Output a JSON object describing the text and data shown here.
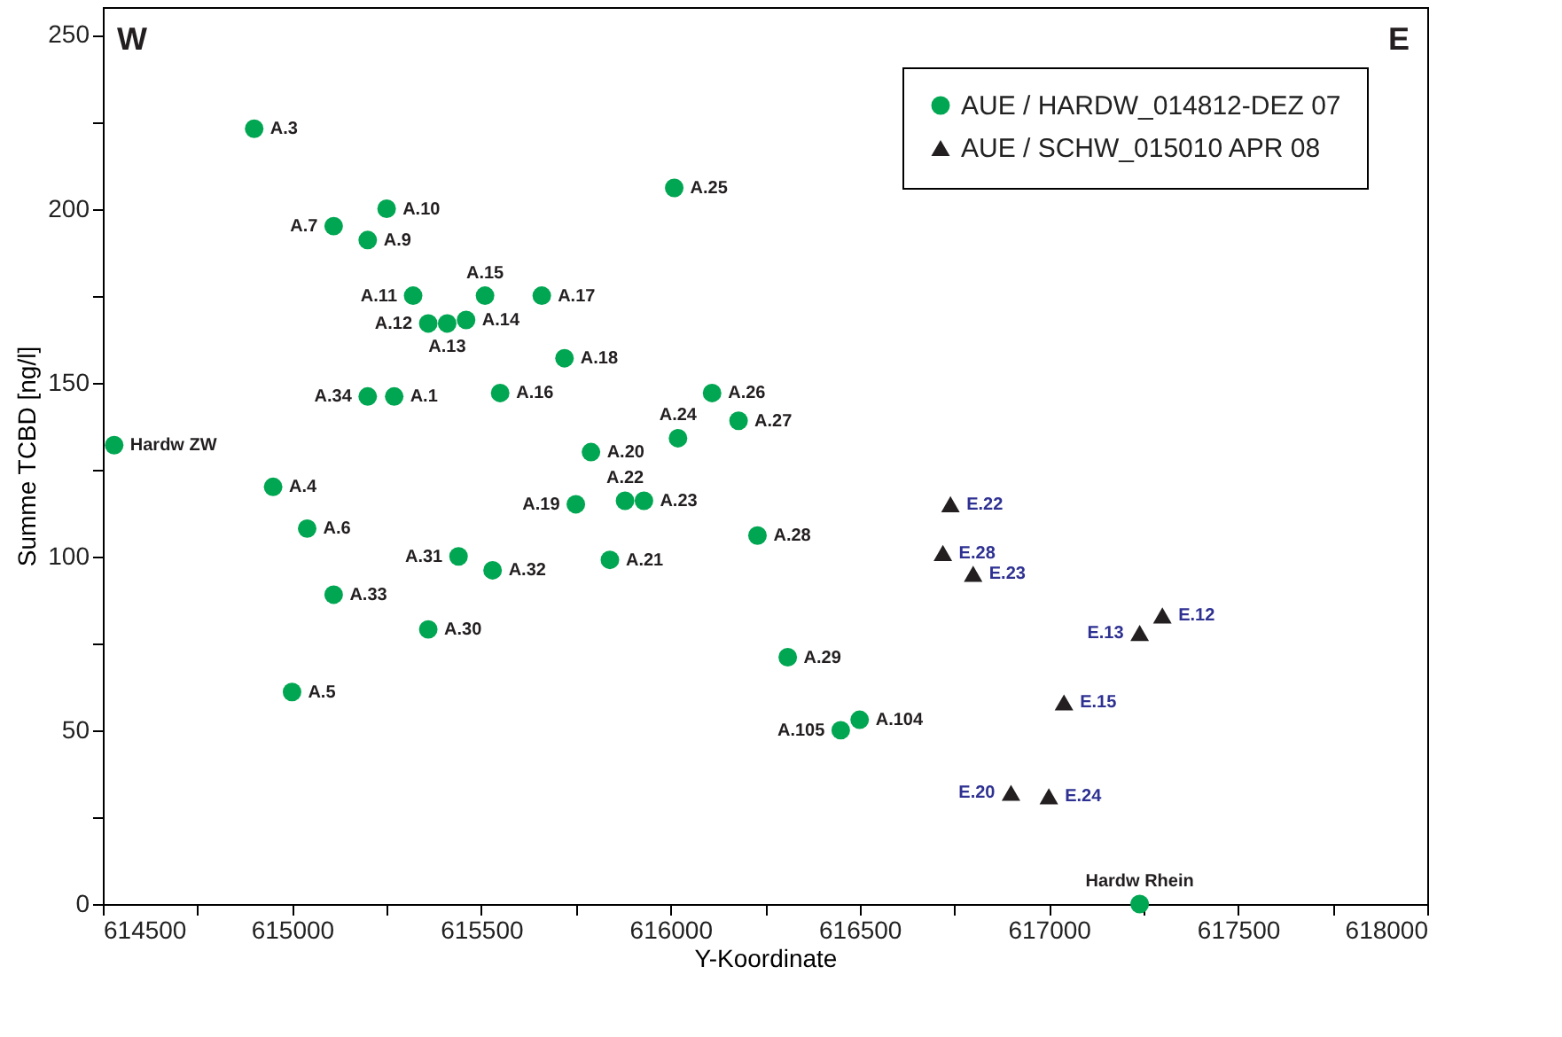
{
  "chart_data": {
    "type": "scatter",
    "xlabel": "Y-Koordinate",
    "ylabel": "Summe TCBD [ng/l]",
    "xlim": [
      614500,
      618000
    ],
    "ylim": [
      0,
      258
    ],
    "xticks": [
      614500,
      {
        "value": 614750,
        "label": null
      },
      615000,
      {
        "value": 615250,
        "label": null
      },
      615500,
      {
        "value": 615750,
        "label": null
      },
      616000,
      {
        "value": 616250,
        "label": null
      },
      616500,
      {
        "value": 616750,
        "label": null
      },
      617000,
      {
        "value": 617250,
        "label": null
      },
      617500,
      {
        "value": 617750,
        "label": null
      },
      618000
    ],
    "yticks": [
      0,
      {
        "value": 25,
        "label": null
      },
      50,
      {
        "value": 75,
        "label": null
      },
      100,
      {
        "value": 125,
        "label": null
      },
      150,
      {
        "value": 175,
        "label": null
      },
      200,
      {
        "value": 225,
        "label": null
      },
      250
    ],
    "legend": "top right",
    "grid": false,
    "series": [
      {
        "name": "AUE / HARDW_014812-DEZ 07",
        "color": "#00a651",
        "marker": "circle",
        "x": [
          614530,
          614900,
          614950,
          615000,
          615040,
          615110,
          615200,
          615250,
          615320,
          615360,
          615410,
          615460,
          615510,
          615550,
          615660,
          615720,
          615270,
          615200,
          615750,
          615790,
          615840,
          615880,
          615930,
          616020,
          616010,
          616110,
          616180,
          616230,
          616310,
          615360,
          615440,
          615530,
          615110,
          616500,
          616450,
          617240
        ],
        "values": [
          132,
          223,
          120,
          61,
          108,
          195,
          191,
          200,
          175,
          167,
          167,
          168,
          175,
          147,
          175,
          157,
          146,
          146,
          115,
          130,
          99,
          116,
          116,
          134,
          206,
          147,
          139,
          106,
          71,
          79,
          100,
          96,
          89,
          53,
          50,
          0
        ]
      },
      {
        "name": "AUE / SCHW_015010 APR 08",
        "color": "#231f20",
        "marker": "triangle",
        "x": [
          616740,
          616720,
          616800,
          617300,
          617240,
          617040,
          616900,
          617000
        ],
        "values": [
          115,
          101,
          95,
          83,
          78,
          58,
          32,
          31
        ]
      }
    ],
    "annotations": [
      "W",
      "E",
      {
        "text": "Hardw ZW",
        "x": 614530,
        "y": 132
      },
      {
        "text": "A.3",
        "x": 614900,
        "y": 223
      },
      {
        "text": "A.4",
        "x": 614950,
        "y": 120
      },
      {
        "text": "A.5",
        "x": 615000,
        "y": 61
      },
      {
        "text": "A.6",
        "x": 615040,
        "y": 108
      },
      {
        "text": "A.7",
        "x": 615110,
        "y": 195
      },
      {
        "text": "A.9",
        "x": 615200,
        "y": 191
      },
      {
        "text": "A.10",
        "x": 615250,
        "y": 200
      },
      {
        "text": "A.11",
        "x": 615320,
        "y": 175
      },
      {
        "text": "A.12",
        "x": 615360,
        "y": 167
      },
      {
        "text": "A.13",
        "x": 615410,
        "y": 167
      },
      {
        "text": "A.14",
        "x": 615460,
        "y": 168
      },
      {
        "text": "A.15",
        "x": 615510,
        "y": 175
      },
      {
        "text": "A.16",
        "x": 615550,
        "y": 147
      },
      {
        "text": "A.17",
        "x": 615660,
        "y": 175
      },
      {
        "text": "A.18",
        "x": 615720,
        "y": 157
      },
      {
        "text": "A.1",
        "x": 615270,
        "y": 146
      },
      {
        "text": "A.34",
        "x": 615200,
        "y": 146
      },
      {
        "text": "A.19",
        "x": 615750,
        "y": 115
      },
      {
        "text": "A.20",
        "x": 615790,
        "y": 130
      },
      {
        "text": "A.21",
        "x": 615840,
        "y": 99
      },
      {
        "text": "A.22",
        "x": 615880,
        "y": 116
      },
      {
        "text": "A.23",
        "x": 615930,
        "y": 116
      },
      {
        "text": "A.24",
        "x": 616020,
        "y": 134
      },
      {
        "text": "A.25",
        "x": 616010,
        "y": 206
      },
      {
        "text": "A.26",
        "x": 616110,
        "y": 147
      },
      {
        "text": "A.27",
        "x": 616180,
        "y": 139
      },
      {
        "text": "A.28",
        "x": 616230,
        "y": 106
      },
      {
        "text": "A.29",
        "x": 616310,
        "y": 71
      },
      {
        "text": "A.30",
        "x": 615360,
        "y": 79
      },
      {
        "text": "A.31",
        "x": 615440,
        "y": 100
      },
      {
        "text": "A.32",
        "x": 615530,
        "y": 96
      },
      {
        "text": "A.33",
        "x": 615110,
        "y": 89
      },
      {
        "text": "A.104",
        "x": 616500,
        "y": 53
      },
      {
        "text": "A.105",
        "x": 616450,
        "y": 50
      },
      {
        "text": "Hardw Rhein",
        "x": 617240,
        "y": 0
      },
      {
        "text": "E.22",
        "x": 616740,
        "y": 115
      },
      {
        "text": "E.28",
        "x": 616720,
        "y": 101
      },
      {
        "text": "E.23",
        "x": 616800,
        "y": 95
      },
      {
        "text": "E.12",
        "x": 617300,
        "y": 83
      },
      {
        "text": "E.13",
        "x": 617240,
        "y": 78
      },
      {
        "text": "E.15",
        "x": 617040,
        "y": 58
      },
      {
        "text": "E.20",
        "x": 616900,
        "y": 32
      },
      {
        "text": "E.24",
        "x": 617000,
        "y": 31
      }
    ]
  }
}
